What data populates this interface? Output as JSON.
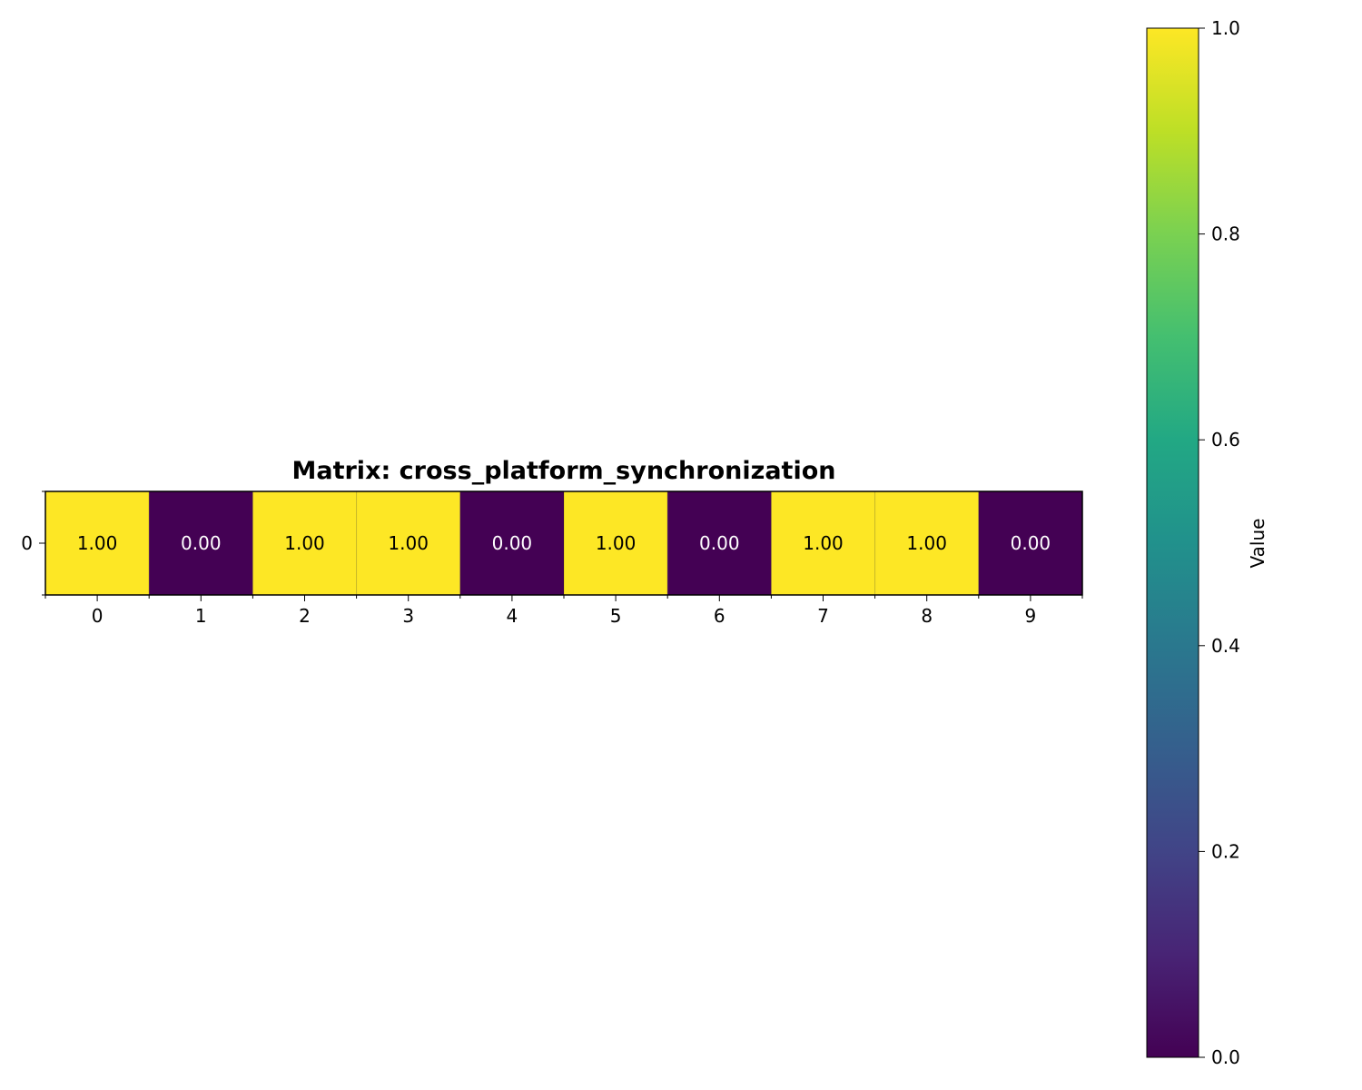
{
  "chart_data": {
    "type": "heatmap",
    "title": "Matrix: cross_platform_synchronization",
    "rows": [
      "0"
    ],
    "columns": [
      "0",
      "1",
      "2",
      "3",
      "4",
      "5",
      "6",
      "7",
      "8",
      "9"
    ],
    "values": [
      [
        1.0,
        0.0,
        1.0,
        1.0,
        0.0,
        1.0,
        0.0,
        1.0,
        1.0,
        0.0
      ]
    ],
    "cell_labels": [
      [
        "1.00",
        "0.00",
        "1.00",
        "1.00",
        "0.00",
        "1.00",
        "0.00",
        "1.00",
        "1.00",
        "0.00"
      ]
    ],
    "colormap": "viridis",
    "vmin": 0.0,
    "vmax": 1.0,
    "colorbar": {
      "label": "Value",
      "ticks": [
        "0.0",
        "0.2",
        "0.4",
        "0.6",
        "0.8",
        "1.0"
      ],
      "tick_values": [
        0.0,
        0.2,
        0.4,
        0.6,
        0.8,
        1.0
      ]
    },
    "colors": {
      "low": "#440154",
      "high": "#fde725",
      "text_on_high": "#000000",
      "text_on_low": "#ffffff"
    }
  }
}
